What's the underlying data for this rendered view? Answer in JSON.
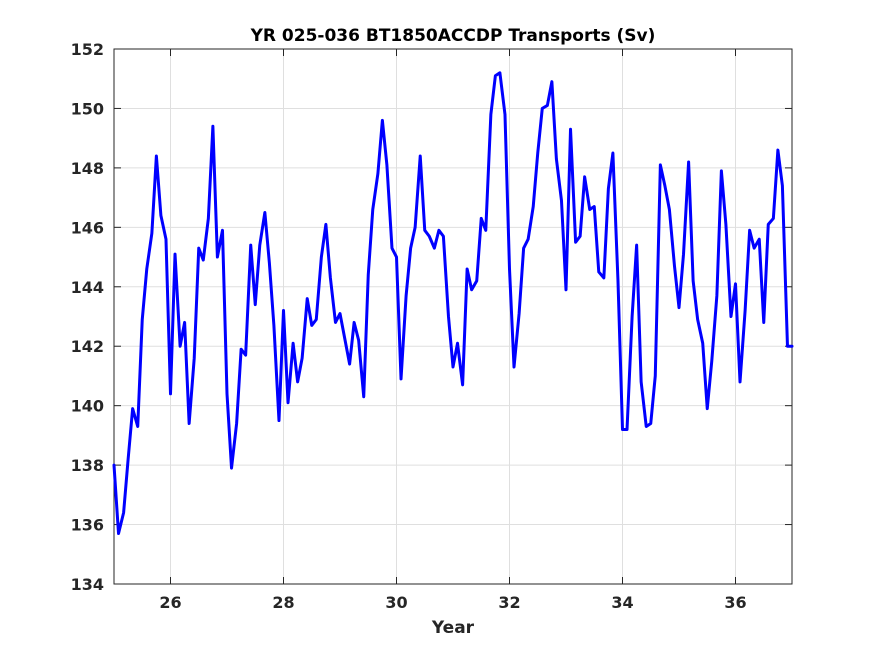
{
  "chart_data": {
    "type": "line",
    "title": "YR 025-036 BT1850ACCDP Transports (Sv)",
    "xlabel": "Year",
    "ylabel": "",
    "xlim": [
      25,
      37
    ],
    "ylim": [
      134,
      152
    ],
    "xticks": [
      26,
      28,
      30,
      32,
      34,
      36
    ],
    "yticks": [
      134,
      136,
      138,
      140,
      142,
      144,
      146,
      148,
      150,
      152
    ],
    "grid": true,
    "series": [
      {
        "color": "#0000ff",
        "x": [
          25.0,
          25.08,
          25.17,
          25.25,
          25.33,
          25.42,
          25.5,
          25.58,
          25.67,
          25.75,
          25.83,
          25.92,
          26.0,
          26.08,
          26.17,
          26.25,
          26.33,
          26.42,
          26.5,
          26.58,
          26.67,
          26.75,
          26.83,
          26.92,
          27.0,
          27.08,
          27.17,
          27.25,
          27.33,
          27.42,
          27.5,
          27.58,
          27.67,
          27.75,
          27.83,
          27.92,
          28.0,
          28.08,
          28.17,
          28.25,
          28.33,
          28.42,
          28.5,
          28.58,
          28.67,
          28.75,
          28.83,
          28.92,
          29.0,
          29.08,
          29.17,
          29.25,
          29.33,
          29.42,
          29.5,
          29.58,
          29.67,
          29.75,
          29.83,
          29.92,
          30.0,
          30.08,
          30.17,
          30.25,
          30.33,
          30.42,
          30.5,
          30.58,
          30.67,
          30.75,
          30.83,
          30.92,
          31.0,
          31.08,
          31.17,
          31.25,
          31.33,
          31.42,
          31.5,
          31.58,
          31.67,
          31.75,
          31.83,
          31.92,
          32.0,
          32.08,
          32.17,
          32.25,
          32.33,
          32.42,
          32.5,
          32.58,
          32.67,
          32.75,
          32.83,
          32.92,
          33.0,
          33.08,
          33.17,
          33.25,
          33.33,
          33.42,
          33.5,
          33.58,
          33.67,
          33.75,
          33.83,
          33.92,
          34.0,
          34.08,
          34.17,
          34.25,
          34.33,
          34.42,
          34.5,
          34.58,
          34.67,
          34.75,
          34.83,
          34.92,
          35.0,
          35.08,
          35.17,
          35.25,
          35.33,
          35.42,
          35.5,
          35.58,
          35.67,
          35.75,
          35.83,
          35.92,
          36.0,
          36.08,
          36.17,
          36.25,
          36.33,
          36.42,
          36.5,
          36.58,
          36.67,
          36.75,
          36.83,
          36.92,
          37.0
        ],
        "y": [
          138.0,
          135.7,
          136.4,
          138.2,
          139.9,
          139.3,
          142.9,
          144.6,
          145.8,
          148.4,
          146.4,
          145.6,
          140.4,
          145.1,
          142.0,
          142.8,
          139.4,
          141.6,
          145.3,
          144.9,
          146.3,
          149.4,
          145.0,
          145.9,
          140.4,
          137.9,
          139.4,
          141.9,
          141.7,
          145.4,
          143.4,
          145.4,
          146.5,
          144.8,
          142.7,
          139.5,
          143.2,
          140.1,
          142.1,
          140.8,
          141.6,
          143.6,
          142.7,
          142.9,
          145.0,
          146.1,
          144.3,
          142.8,
          143.1,
          142.3,
          141.4,
          142.8,
          142.2,
          140.3,
          144.4,
          146.6,
          147.8,
          149.6,
          148.1,
          145.3,
          145.0,
          140.9,
          143.7,
          145.3,
          146.0,
          148.4,
          145.9,
          145.7,
          145.3,
          145.9,
          145.7,
          143.0,
          141.3,
          142.1,
          140.7,
          144.6,
          143.9,
          144.2,
          146.3,
          145.9,
          149.8,
          151.1,
          151.2,
          149.8,
          144.6,
          141.3,
          143.1,
          145.3,
          145.6,
          146.7,
          148.5,
          150.0,
          150.1,
          150.9,
          148.3,
          146.9,
          143.9,
          149.3,
          145.5,
          145.7,
          147.7,
          146.6,
          146.7,
          144.5,
          144.3,
          147.3,
          148.5,
          144.2,
          139.2,
          139.2,
          143.0,
          145.4,
          140.8,
          139.3,
          139.4,
          141.0,
          148.1,
          147.4,
          146.6,
          144.7,
          143.3,
          145.1,
          148.2,
          144.2,
          142.9,
          142.1,
          139.9,
          141.5,
          143.7,
          147.9,
          146.1,
          143.0,
          144.1,
          140.8,
          143.2,
          145.9,
          145.3,
          145.6,
          142.8,
          146.1,
          146.3,
          148.6,
          147.4,
          142.0,
          142.0
        ]
      }
    ]
  }
}
